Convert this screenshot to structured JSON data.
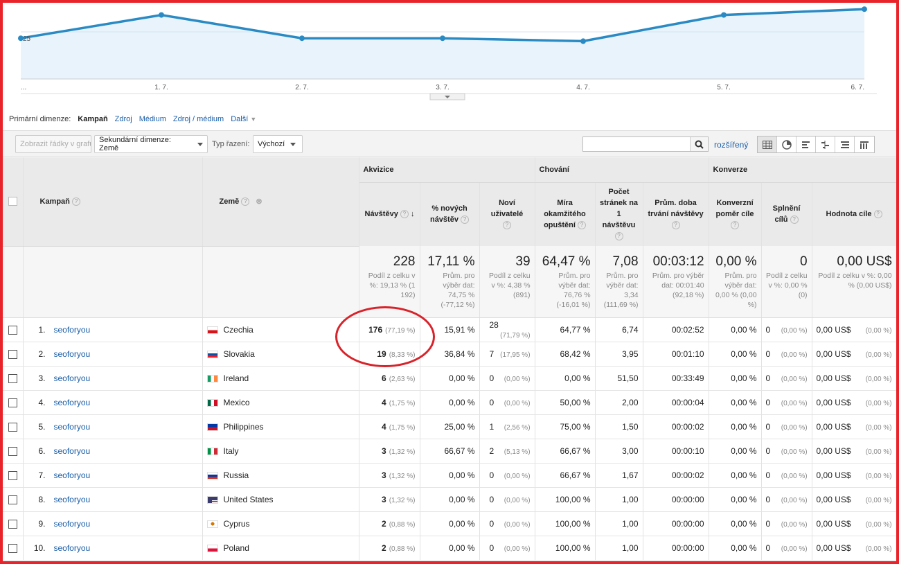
{
  "chart_data": {
    "type": "area",
    "x": [
      "...",
      "1. 7.",
      "2. 7.",
      "3. 7.",
      "4. 7.",
      "5. 7.",
      "6. 7."
    ],
    "values": [
      29,
      33,
      29,
      29,
      28.5,
      33,
      34
    ],
    "y_tick_label": "25",
    "colors": {
      "line": "#2a8ac4",
      "fill": "#e8f3fb"
    }
  },
  "dimensions": {
    "label": "Primární dimenze:",
    "active": "Kampaň",
    "links": [
      "Zdroj",
      "Médium",
      "Zdroj / médium"
    ],
    "more": "Další"
  },
  "toolbar": {
    "plot_rows": "Zobrazit řádky v grafu",
    "secondary": "Sekundární dimenze: Země",
    "sort_label": "Typ řazení:",
    "sort_value": "Výchozí",
    "advanced": "rozšířený"
  },
  "headers": {
    "groups": [
      "Akvizice",
      "Chování",
      "Konverze"
    ],
    "campaign": "Kampaň",
    "country": "Země",
    "cols": [
      "Návštěvy",
      "% nových návštěv",
      "Noví uživatelé",
      "Míra okamžitého opuštění",
      "Počet stránek na 1 návštěvu",
      "Prům. doba trvání návštěvy",
      "Konverzní poměr cíle",
      "Splnění cílů",
      "Hodnota cíle"
    ]
  },
  "totals": [
    {
      "big": "228",
      "sub": "Podíl z celku v %: 19,13 % (1 192)"
    },
    {
      "big": "17,11 %",
      "sub": "Prům. pro výběr dat: 74,75 % (-77,12 %)"
    },
    {
      "big": "39",
      "sub": "Podíl z celku v %: 4,38 % (891)"
    },
    {
      "big": "64,47 %",
      "sub": "Prům. pro výběr dat: 76,76 % (-16,01 %)"
    },
    {
      "big": "7,08",
      "sub": "Prům. pro výběr dat: 3,34 (111,69 %)"
    },
    {
      "big": "00:03:12",
      "sub": "Prům. pro výběr dat: 00:01:40 (92,18 %)"
    },
    {
      "big": "0,00 %",
      "sub": "Prům. pro výběr dat: 0,00 % (0,00 %)"
    },
    {
      "big": "0",
      "sub": "Podíl z celku v %: 0,00 % (0)"
    },
    {
      "big": "0,00 US$",
      "sub": "Podíl z celku v %: 0,00 % (0,00 US$)"
    }
  ],
  "rows": [
    {
      "rank": "1.",
      "campaign": "seoforyou",
      "flag": "cz",
      "country": "Czechia",
      "visits": "176",
      "visits_pct": "(77,19 %)",
      "new_pct": "15,91 %",
      "new_users": "28",
      "new_users_pct": "(71,79 %)",
      "bounce": "64,77 %",
      "pages": "6,74",
      "duration": "00:02:52",
      "conv": "0,00 %",
      "goals": "0",
      "goals_pct": "(0,00 %)",
      "value": "0,00 US$",
      "value_pct": "(0,00 %)"
    },
    {
      "rank": "2.",
      "campaign": "seoforyou",
      "flag": "sk",
      "country": "Slovakia",
      "visits": "19",
      "visits_pct": "(8,33 %)",
      "new_pct": "36,84 %",
      "new_users": "7",
      "new_users_pct": "(17,95 %)",
      "bounce": "68,42 %",
      "pages": "3,95",
      "duration": "00:01:10",
      "conv": "0,00 %",
      "goals": "0",
      "goals_pct": "(0,00 %)",
      "value": "0,00 US$",
      "value_pct": "(0,00 %)"
    },
    {
      "rank": "3.",
      "campaign": "seoforyou",
      "flag": "ie",
      "country": "Ireland",
      "visits": "6",
      "visits_pct": "(2,63 %)",
      "new_pct": "0,00 %",
      "new_users": "0",
      "new_users_pct": "(0,00 %)",
      "bounce": "0,00 %",
      "pages": "51,50",
      "duration": "00:33:49",
      "conv": "0,00 %",
      "goals": "0",
      "goals_pct": "(0,00 %)",
      "value": "0,00 US$",
      "value_pct": "(0,00 %)"
    },
    {
      "rank": "4.",
      "campaign": "seoforyou",
      "flag": "mx",
      "country": "Mexico",
      "visits": "4",
      "visits_pct": "(1,75 %)",
      "new_pct": "0,00 %",
      "new_users": "0",
      "new_users_pct": "(0,00 %)",
      "bounce": "50,00 %",
      "pages": "2,00",
      "duration": "00:00:04",
      "conv": "0,00 %",
      "goals": "0",
      "goals_pct": "(0,00 %)",
      "value": "0,00 US$",
      "value_pct": "(0,00 %)"
    },
    {
      "rank": "5.",
      "campaign": "seoforyou",
      "flag": "ph",
      "country": "Philippines",
      "visits": "4",
      "visits_pct": "(1,75 %)",
      "new_pct": "25,00 %",
      "new_users": "1",
      "new_users_pct": "(2,56 %)",
      "bounce": "75,00 %",
      "pages": "1,50",
      "duration": "00:00:02",
      "conv": "0,00 %",
      "goals": "0",
      "goals_pct": "(0,00 %)",
      "value": "0,00 US$",
      "value_pct": "(0,00 %)"
    },
    {
      "rank": "6.",
      "campaign": "seoforyou",
      "flag": "it",
      "country": "Italy",
      "visits": "3",
      "visits_pct": "(1,32 %)",
      "new_pct": "66,67 %",
      "new_users": "2",
      "new_users_pct": "(5,13 %)",
      "bounce": "66,67 %",
      "pages": "3,00",
      "duration": "00:00:10",
      "conv": "0,00 %",
      "goals": "0",
      "goals_pct": "(0,00 %)",
      "value": "0,00 US$",
      "value_pct": "(0,00 %)"
    },
    {
      "rank": "7.",
      "campaign": "seoforyou",
      "flag": "ru",
      "country": "Russia",
      "visits": "3",
      "visits_pct": "(1,32 %)",
      "new_pct": "0,00 %",
      "new_users": "0",
      "new_users_pct": "(0,00 %)",
      "bounce": "66,67 %",
      "pages": "1,67",
      "duration": "00:00:02",
      "conv": "0,00 %",
      "goals": "0",
      "goals_pct": "(0,00 %)",
      "value": "0,00 US$",
      "value_pct": "(0,00 %)"
    },
    {
      "rank": "8.",
      "campaign": "seoforyou",
      "flag": "us",
      "country": "United States",
      "visits": "3",
      "visits_pct": "(1,32 %)",
      "new_pct": "0,00 %",
      "new_users": "0",
      "new_users_pct": "(0,00 %)",
      "bounce": "100,00 %",
      "pages": "1,00",
      "duration": "00:00:00",
      "conv": "0,00 %",
      "goals": "0",
      "goals_pct": "(0,00 %)",
      "value": "0,00 US$",
      "value_pct": "(0,00 %)"
    },
    {
      "rank": "9.",
      "campaign": "seoforyou",
      "flag": "cy",
      "country": "Cyprus",
      "visits": "2",
      "visits_pct": "(0,88 %)",
      "new_pct": "0,00 %",
      "new_users": "0",
      "new_users_pct": "(0,00 %)",
      "bounce": "100,00 %",
      "pages": "1,00",
      "duration": "00:00:00",
      "conv": "0,00 %",
      "goals": "0",
      "goals_pct": "(0,00 %)",
      "value": "0,00 US$",
      "value_pct": "(0,00 %)"
    },
    {
      "rank": "10.",
      "campaign": "seoforyou",
      "flag": "pl",
      "country": "Poland",
      "visits": "2",
      "visits_pct": "(0,88 %)",
      "new_pct": "0,00 %",
      "new_users": "0",
      "new_users_pct": "(0,00 %)",
      "bounce": "100,00 %",
      "pages": "1,00",
      "duration": "00:00:00",
      "conv": "0,00 %",
      "goals": "0",
      "goals_pct": "(0,00 %)",
      "value": "0,00 US$",
      "value_pct": "(0,00 %)"
    }
  ]
}
